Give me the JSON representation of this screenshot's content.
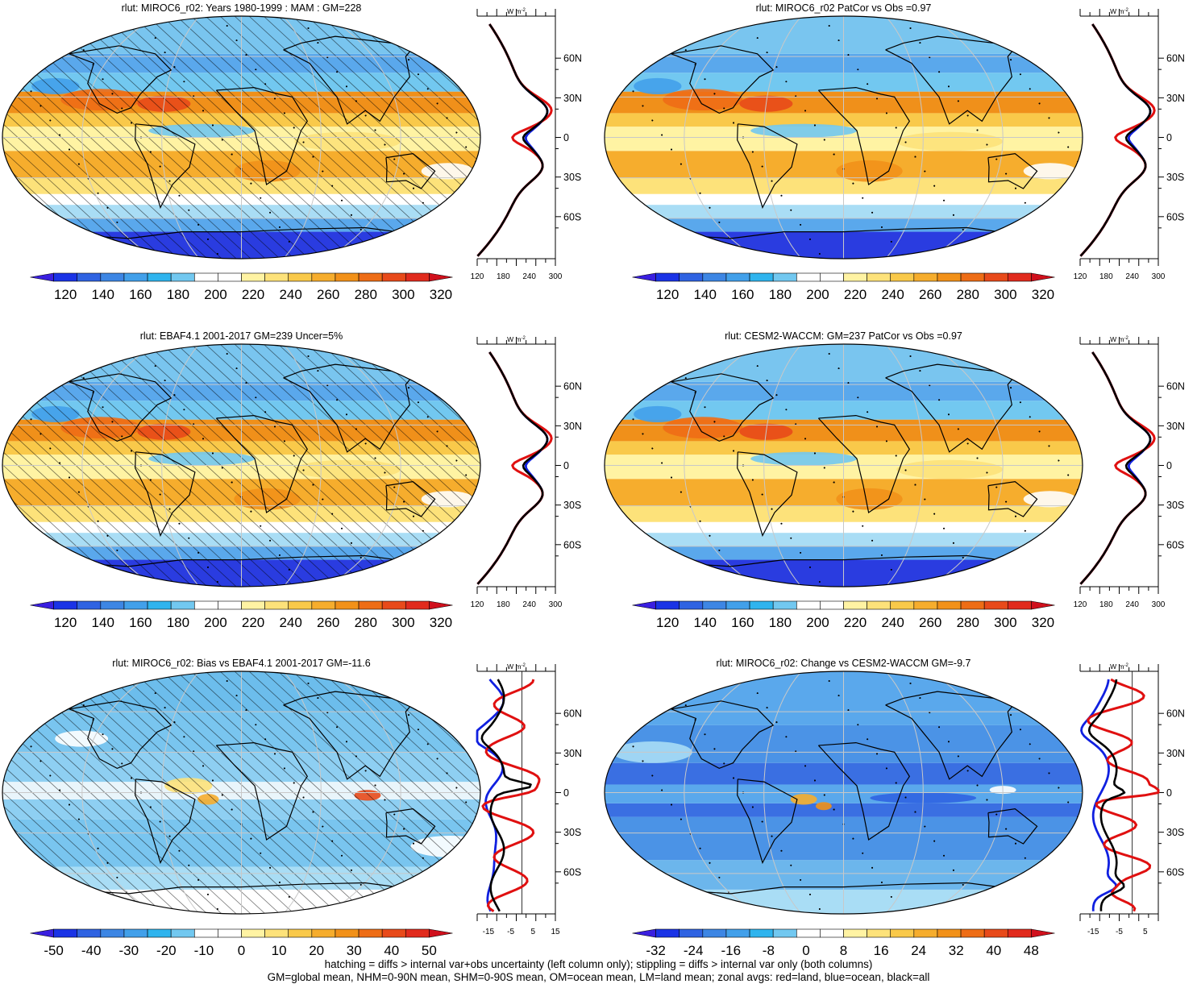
{
  "colors": {
    "abs_scale": [
      "#3a1fe0",
      "#1a33e6",
      "#2f63e2",
      "#3d86e4",
      "#42a0ea",
      "#2fb4ee",
      "#72c8f0",
      "#ffffff",
      "#ffffff",
      "#fff3a3",
      "#fde27a",
      "#f9c94a",
      "#f6ad2d",
      "#f29119",
      "#ee6d16",
      "#e84a1a",
      "#e12b1d",
      "#d0101c"
    ],
    "bias_scale": [
      "#3a1fe0",
      "#1a33e6",
      "#2f63e2",
      "#3d86e4",
      "#42a0ea",
      "#2fb4ee",
      "#72c8f0",
      "#ffffff",
      "#ffffff",
      "#fff3a3",
      "#fde27a",
      "#f9c94a",
      "#f6ad2d",
      "#f29119",
      "#ee6d16",
      "#e84a1a",
      "#e12b1d",
      "#d0101c"
    ],
    "land_line": "#e01010",
    "ocean_line": "#1020e0",
    "all_line": "#000000",
    "grid": "#c8c8c8"
  },
  "panels": [
    {
      "id": "model-mam",
      "title": "rlut: MIROC6_r02: Years 1980-1999 : MAM : GM=228",
      "colorbar_labels": [
        "120",
        "140",
        "160",
        "180",
        "200",
        "220",
        "240",
        "260",
        "280",
        "300",
        "320"
      ],
      "scale": "abs",
      "zonal_axis_labels": [
        "120",
        "180",
        "240",
        "300"
      ],
      "zonal_unit": "W m",
      "zonal_unit_sup": "-2",
      "lat_labels": [
        "60N",
        "30N",
        "0",
        "30S",
        "60S"
      ],
      "hatching": true,
      "zonal_type": "abs"
    },
    {
      "id": "model-patcor",
      "title": "rlut: MIROC6_r02 PatCor vs Obs =0.97",
      "colorbar_labels": [
        "120",
        "140",
        "160",
        "180",
        "200",
        "220",
        "240",
        "260",
        "280",
        "300",
        "320"
      ],
      "scale": "abs",
      "zonal_axis_labels": [
        "120",
        "180",
        "240",
        "300"
      ],
      "zonal_unit": "W m",
      "zonal_unit_sup": "-2",
      "lat_labels": [
        "60N",
        "30N",
        "0",
        "30S",
        "60S"
      ],
      "hatching": false,
      "zonal_type": "abs"
    },
    {
      "id": "obs-ebaf",
      "title": "rlut: EBAF4.1 2001-2017 GM=239 Uncer=5%",
      "colorbar_labels": [
        "120",
        "140",
        "160",
        "180",
        "200",
        "220",
        "240",
        "260",
        "280",
        "300",
        "320"
      ],
      "scale": "abs",
      "zonal_axis_labels": [
        "120",
        "180",
        "240",
        "300"
      ],
      "zonal_unit": "W m",
      "zonal_unit_sup": "-2",
      "lat_labels": [
        "60N",
        "30N",
        "0",
        "30S",
        "60S"
      ],
      "hatching": true,
      "zonal_type": "abs"
    },
    {
      "id": "cesm2-waccm",
      "title": "rlut: CESM2-WACCM: GM=237 PatCor vs Obs =0.97",
      "colorbar_labels": [
        "120",
        "140",
        "160",
        "180",
        "200",
        "220",
        "240",
        "260",
        "280",
        "300",
        "320"
      ],
      "scale": "abs",
      "zonal_axis_labels": [
        "120",
        "180",
        "240",
        "300"
      ],
      "zonal_unit": "W m",
      "zonal_unit_sup": "-2",
      "lat_labels": [
        "60N",
        "30N",
        "0",
        "30S",
        "60S"
      ],
      "hatching": false,
      "zonal_type": "abs"
    },
    {
      "id": "bias-ebaf",
      "title": "rlut: MIROC6_r02: Bias vs EBAF4.1 2001-2017 GM=-11.6",
      "colorbar_labels": [
        "-50",
        "-40",
        "-30",
        "-20",
        "-10",
        "0",
        "10",
        "20",
        "30",
        "40",
        "50"
      ],
      "scale": "bias",
      "zonal_axis_labels": [
        "-15",
        "-5",
        "5",
        "15"
      ],
      "zonal_unit": "W m",
      "zonal_unit_sup": "-2",
      "lat_labels": [
        "60N",
        "30N",
        "0",
        "30S",
        "60S"
      ],
      "hatching": true,
      "zonal_type": "bias"
    },
    {
      "id": "change-cesm2",
      "title": "rlut: MIROC6_r02: Change vs CESM2-WACCM GM=-9.7",
      "colorbar_labels": [
        "-32",
        "-24",
        "-16",
        "-8",
        "0",
        "8",
        "16",
        "24",
        "32",
        "40",
        "48"
      ],
      "scale": "bias",
      "zonal_axis_labels": [
        "-15",
        "-5",
        "5"
      ],
      "zonal_unit": "W m",
      "zonal_unit_sup": "-2",
      "lat_labels": [
        "60N",
        "30N",
        "0",
        "30S",
        "60S"
      ],
      "hatching": false,
      "zonal_type": "change"
    }
  ],
  "footer": {
    "line1": "hatching = diffs > internal var+obs uncertainty (left column only); stippling = diffs > internal var only (both columns)",
    "line2": "GM=global mean, NHM=0-90N mean, SHM=0-90S mean, OM=ocean mean, LM=land mean; zonal avgs: red=land, blue=ocean, black=all"
  }
}
